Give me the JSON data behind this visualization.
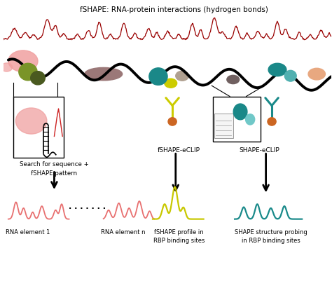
{
  "title": "fSHAPE: RNA-protein interactions (hydrogen bonds)",
  "title_fontsize": 7.5,
  "background_color": "#ffffff",
  "fshape_eclip_label": "fSHAPE-eCLIP",
  "shape_eclip_label": "SHAPE-eCLIP",
  "search_label": "Search for sequence +\nfSHAPE pattern",
  "fshape_profile_label": "fSHAPE profile in\nRBP binding sites",
  "shape_structure_label": "SHAPE structure probing\nin RBP binding sites",
  "rna_element1_label": "RNA element 1",
  "rna_element_n_label": "RNA element n",
  "red_color": "#cc2222",
  "salmon_color": "#e87070",
  "yellow_color": "#cccc00",
  "teal_color": "#1a8a8a",
  "pink_color": "#f0a0a0",
  "olive_color": "#7a9428",
  "dark_olive_color": "#4a5a20",
  "brown_color": "#9b7878",
  "orange_color": "#cc6622",
  "gray_taupe_color": "#b0a090",
  "dark_teal_color": "#1a8888",
  "light_teal_color": "#50b0b0",
  "peach_color": "#e8a880",
  "dark_brown_gray": "#706060"
}
